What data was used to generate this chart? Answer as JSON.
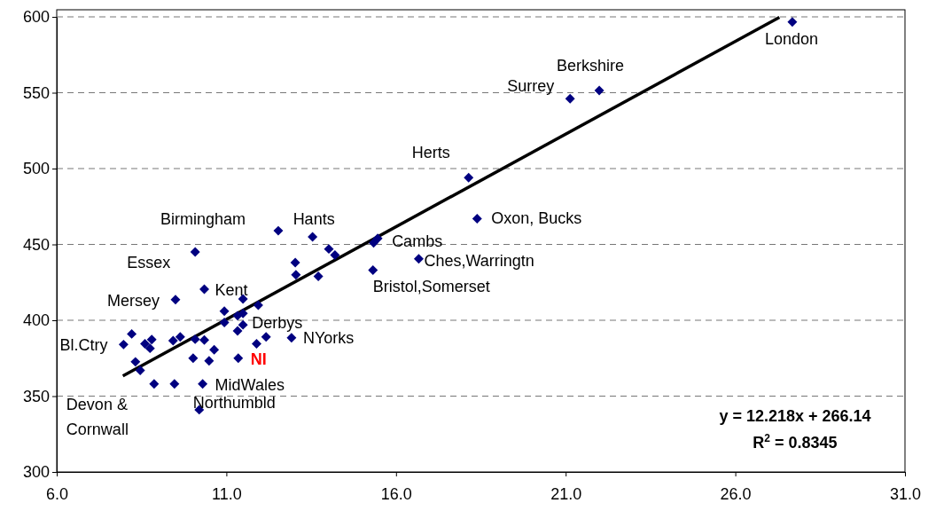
{
  "chart_data": {
    "type": "scatter",
    "grid": "y",
    "xlim": [
      6.0,
      31.0
    ],
    "xticks": [
      {
        "value": 6,
        "label": "6.0"
      },
      {
        "value": 11,
        "label": "11.0"
      },
      {
        "value": 16,
        "label": "16.0"
      },
      {
        "value": 21,
        "label": "21.0"
      },
      {
        "value": 26,
        "label": "26.0"
      },
      {
        "value": 31,
        "label": "31.0"
      }
    ],
    "ylim": [
      300,
      600
    ],
    "yticks": [
      300,
      350,
      400,
      450,
      500,
      550,
      600
    ],
    "series": [
      {
        "marker": "diamond",
        "color": "#000080",
        "x": [
          27.68,
          21.99,
          21.13,
          18.14,
          18.39,
          15.46,
          15.34,
          16.67,
          15.32,
          13.54,
          12.53,
          10.08,
          14.02,
          14.2,
          13.03,
          13.05,
          13.71,
          10.35,
          9.5,
          11.49,
          11.94,
          10.94,
          10.94,
          11.33,
          11.49,
          11.49,
          11.33,
          12.17,
          11.89,
          12.92,
          11.35,
          7.97,
          8.21,
          8.6,
          8.8,
          8.75,
          8.32,
          8.46,
          8.87,
          9.47,
          10.3,
          10.2,
          9.43,
          9.64,
          10.08,
          10.35,
          10.02,
          10.49,
          10.64
        ],
        "values": [
          596.6,
          551.5,
          546,
          494,
          467,
          454,
          451,
          440.5,
          433,
          455,
          459,
          445,
          447,
          443,
          438,
          430,
          429,
          420.5,
          413.6,
          414,
          410,
          406,
          398.5,
          403,
          404.5,
          397,
          393,
          389,
          384.5,
          388.5,
          375,
          384,
          391,
          384.5,
          387.3,
          381.5,
          372.6,
          367,
          358,
          358,
          358,
          341,
          386.5,
          389,
          387.5,
          387,
          375,
          373.3,
          380.5
        ]
      },
      {
        "type": "line",
        "color": "#000000",
        "x": [
          7.95,
          27.3
        ],
        "values": [
          363.3,
          599.7
        ]
      }
    ],
    "annotations": [
      {
        "text": "London",
        "x": 27.68,
        "y": 596.6
      },
      {
        "text": "Berkshire",
        "x": 21.99,
        "y": 551.5
      },
      {
        "text": "Surrey",
        "x": 21.13,
        "y": 546
      },
      {
        "text": "Herts",
        "x": 18.14,
        "y": 494
      },
      {
        "text": "Oxon, Bucks",
        "x": 18.39,
        "y": 467
      },
      {
        "text": "Cambs",
        "x": 15.46,
        "y": 454
      },
      {
        "text": "Ches,Warringtn",
        "x": 16.67,
        "y": 440.5
      },
      {
        "text": "Bristol,Somerset",
        "x": 15.32,
        "y": 433
      },
      {
        "text": "Hants",
        "x": 13.54,
        "y": 455
      },
      {
        "text": "Birmingham",
        "x": 12.53,
        "y": 459
      },
      {
        "text": "Essex",
        "x": 10.08,
        "y": 445
      },
      {
        "text": "Kent",
        "x": 10.35,
        "y": 420.5
      },
      {
        "text": "Mersey",
        "x": 9.5,
        "y": 413.6
      },
      {
        "text": "Derbys",
        "x": 11.49,
        "y": 397
      },
      {
        "text": "NYorks",
        "x": 12.92,
        "y": 388.5
      },
      {
        "text": "NI",
        "x": 11.35,
        "y": 375
      },
      {
        "text": "Bl.Ctry",
        "x": 7.97,
        "y": 384
      },
      {
        "text": "MidWales",
        "x": 10.3,
        "y": 358
      },
      {
        "text": "Northumbld",
        "x": 10.2,
        "y": 341
      },
      {
        "text": "Devon & Cornwall",
        "x": 8.87,
        "y": 358
      },
      "y = 12.218x + 266.14",
      "R$^{2}$ = 0.8345"
    ]
  }
}
